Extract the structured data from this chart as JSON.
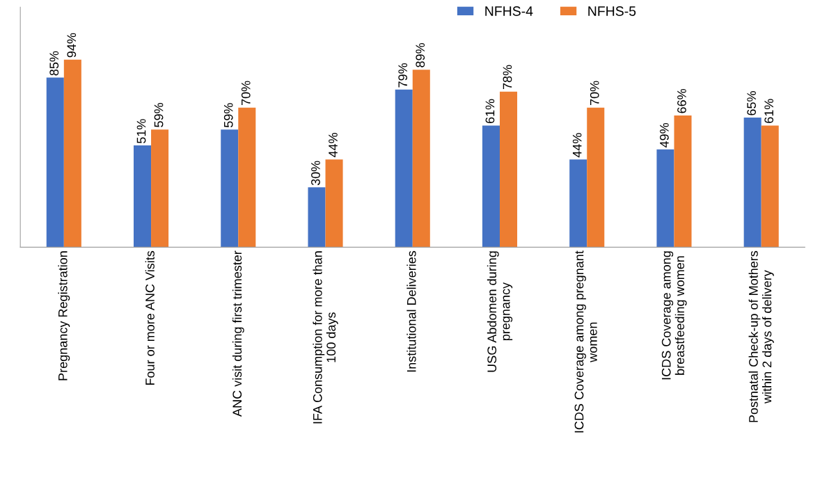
{
  "chart_data": {
    "type": "bar",
    "categories": [
      "Pregnancy Registration",
      "Four or more ANC Visits",
      "ANC visit during first trimester",
      "IFA Consumption for more than\n100 days",
      "Institutional Deliveries",
      "USG Abdomen during\npregnancy",
      "ICDS Coverage among pregnant\nwomen",
      "ICDS Coverage among\nbreastfeeding women",
      "Postnatal Check-up of Mothers\nwithin 2 days of delivery"
    ],
    "series": [
      {
        "name": "NFHS-4",
        "color": "#4472c4",
        "values": [
          85,
          51,
          59,
          30,
          79,
          61,
          44,
          49,
          65
        ],
        "value_labels": [
          "85%",
          "51%",
          "59%",
          "30%",
          "79%",
          "61%",
          "44%",
          "49%",
          "65%"
        ]
      },
      {
        "name": "NFHS-5",
        "color": "#ed7d31",
        "values": [
          94,
          59,
          70,
          44,
          89,
          78,
          70,
          66,
          61
        ],
        "value_labels": [
          "94%",
          "59%",
          "70%",
          "44%",
          "89%",
          "78%",
          "70%",
          "66%",
          "61%"
        ]
      }
    ],
    "legend": "top right",
    "grid": false
  }
}
